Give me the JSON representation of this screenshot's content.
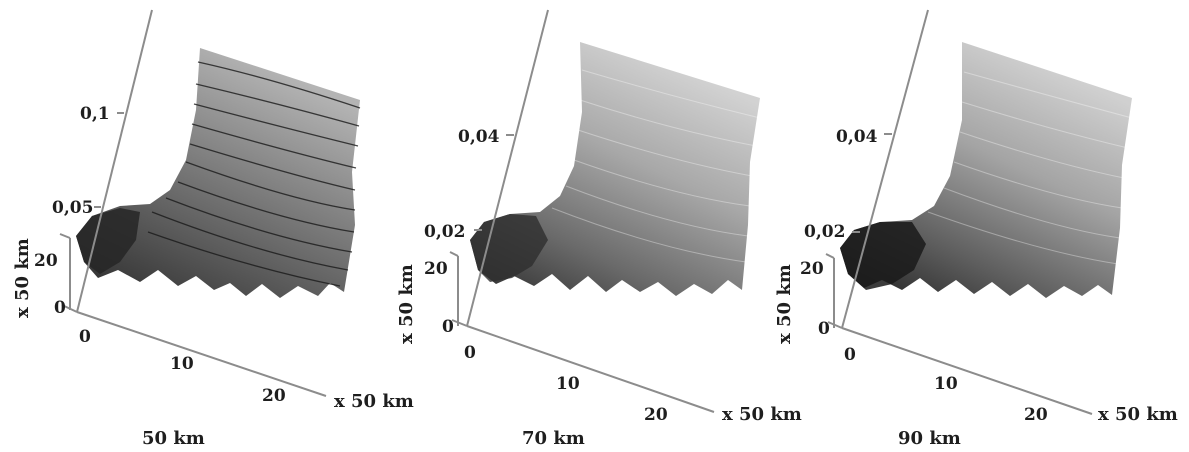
{
  "chart_data": [
    {
      "type": "surface-3d",
      "caption": "50 km",
      "z_ticks": [
        "0,05",
        "0,1"
      ],
      "x_ticks": [
        "0",
        "10",
        "20"
      ],
      "y_ticks": [
        "0",
        "20"
      ],
      "xlabel": "x 50 km",
      "ylabel": "x 50 km",
      "colormap": "grayscale",
      "contour_lines": true
    },
    {
      "type": "surface-3d",
      "caption": "70 km",
      "z_ticks": [
        "0,02",
        "0,04"
      ],
      "x_ticks": [
        "0",
        "10",
        "20"
      ],
      "y_ticks": [
        "0",
        "20"
      ],
      "xlabel": "x 50 km",
      "ylabel": "x 50 km",
      "colormap": "grayscale",
      "contour_lines": false
    },
    {
      "type": "surface-3d",
      "caption": "90 km",
      "z_ticks": [
        "0,02",
        "0,04"
      ],
      "x_ticks": [
        "0",
        "10",
        "20"
      ],
      "y_ticks": [
        "0",
        "20"
      ],
      "xlabel": "x 50 km",
      "ylabel": "x 50 km",
      "colormap": "grayscale",
      "contour_lines": false
    }
  ],
  "colors": {
    "axis": "#8c8c8c",
    "text": "#1e1e1e",
    "dark": "#1c1c1c",
    "mid": "#6e6e6e",
    "light": "#c8c8c8"
  }
}
